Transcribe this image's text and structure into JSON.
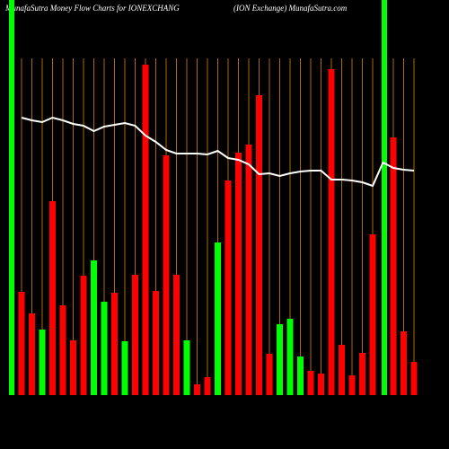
{
  "chart_data": {
    "type": "bar",
    "title": "MunafaSutra  Money Flow  Charts for IONEXCHANG",
    "subtitle": "(ION  Exchange) MunafaSutra.com",
    "categories": [
      null,
      null,
      null,
      null,
      null,
      null,
      null,
      null,
      null,
      null,
      null,
      null,
      null,
      null,
      null,
      null,
      null,
      null,
      null,
      null,
      null,
      null,
      null,
      null,
      null,
      null,
      null,
      null,
      null,
      null,
      null,
      null,
      null,
      null,
      null,
      null,
      null,
      null,
      null
    ],
    "values": [
      115,
      91,
      73,
      216,
      100,
      61,
      133,
      150,
      104,
      114,
      60,
      134,
      368,
      116,
      267,
      134,
      61,
      12,
      20,
      170,
      239,
      270,
      279,
      334,
      46,
      79,
      85,
      43,
      27,
      24,
      363,
      56,
      22,
      47,
      179,
      0,
      287,
      71,
      37
    ],
    "colors": [
      "red",
      "red",
      "#00ff00",
      "red",
      "red",
      "red",
      "red",
      "#00ff00",
      "#00ff00",
      "red",
      "#00ff00",
      "red",
      "red",
      "red",
      "red",
      "red",
      "#00ff00",
      "red",
      "red",
      "#00ff00",
      "red",
      "red",
      "red",
      "red",
      "red",
      "#00ff00",
      "#00ff00",
      "#00ff00",
      "red",
      "red",
      "red",
      "red",
      "red",
      "red",
      "red",
      "red",
      "red",
      "red",
      "red"
    ],
    "series": [
      {
        "color": "#ffffff",
        "values": [
          309,
          306,
          304,
          309,
          306,
          302,
          300,
          294,
          299,
          301,
          303,
          300,
          289,
          282,
          273,
          269,
          269,
          269,
          268,
          272,
          264,
          262,
          257,
          246,
          247,
          244,
          247,
          249,
          250,
          250,
          240,
          240,
          239,
          237,
          233,
          259,
          253,
          251,
          250
        ]
      }
    ],
    "ylim": [
      0,
      440
    ]
  }
}
